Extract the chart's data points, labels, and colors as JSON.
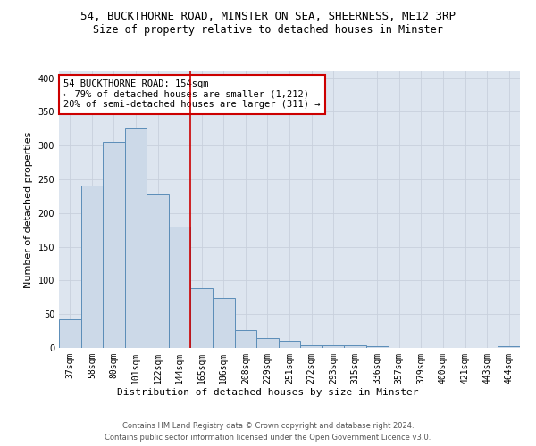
{
  "title_line1": "54, BUCKTHORNE ROAD, MINSTER ON SEA, SHEERNESS, ME12 3RP",
  "title_line2": "Size of property relative to detached houses in Minster",
  "xlabel": "Distribution of detached houses by size in Minster",
  "ylabel": "Number of detached properties",
  "bar_color": "#ccd9e8",
  "bar_edge_color": "#5b8db8",
  "categories": [
    "37sqm",
    "58sqm",
    "80sqm",
    "101sqm",
    "122sqm",
    "144sqm",
    "165sqm",
    "186sqm",
    "208sqm",
    "229sqm",
    "251sqm",
    "272sqm",
    "293sqm",
    "315sqm",
    "336sqm",
    "357sqm",
    "379sqm",
    "400sqm",
    "421sqm",
    "443sqm",
    "464sqm"
  ],
  "values": [
    42,
    241,
    305,
    325,
    227,
    180,
    88,
    74,
    26,
    15,
    10,
    4,
    4,
    4,
    3,
    0,
    0,
    0,
    0,
    0,
    3
  ],
  "vline_x": 5.5,
  "vline_color": "#cc0000",
  "annotation_text": "54 BUCKTHORNE ROAD: 154sqm\n← 79% of detached houses are smaller (1,212)\n20% of semi-detached houses are larger (311) →",
  "annotation_box_color": "#ffffff",
  "annotation_box_edge": "#cc0000",
  "ylim": [
    0,
    410
  ],
  "yticks": [
    0,
    50,
    100,
    150,
    200,
    250,
    300,
    350,
    400
  ],
  "grid_color": "#c8d0dc",
  "background_color": "#dde5ef",
  "footer1": "Contains HM Land Registry data © Crown copyright and database right 2024.",
  "footer2": "Contains public sector information licensed under the Open Government Licence v3.0.",
  "title_fontsize": 9,
  "subtitle_fontsize": 8.5,
  "xlabel_fontsize": 8,
  "ylabel_fontsize": 8,
  "tick_fontsize": 7,
  "annot_fontsize": 7.5
}
